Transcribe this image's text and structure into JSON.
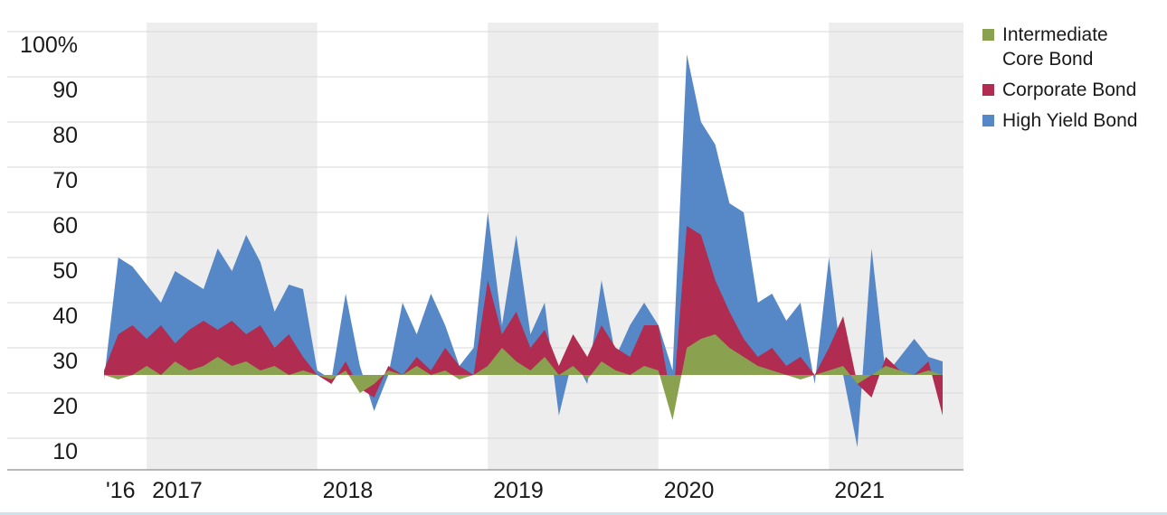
{
  "colors": {
    "band": "#ededed",
    "grid": "#d9d9d9",
    "axis": "#a0a0a0",
    "text": "#1a1a1a",
    "green": "#8aa24f",
    "red": "#b02c50",
    "blue": "#5688c7"
  },
  "chart_data": {
    "type": "area",
    "title": "",
    "frequency": "monthly",
    "x_start": "Oct 2016",
    "x_end": "Sep 2021",
    "baseline_value": 24,
    "ylim": [
      10,
      100
    ],
    "grid": true,
    "legend_position": "top-right",
    "background_year_bands": [
      "2017",
      "2019",
      "2021"
    ],
    "yticks": [
      {
        "value": 100,
        "label": "100%"
      },
      {
        "value": 90,
        "label": "90"
      },
      {
        "value": 80,
        "label": "80"
      },
      {
        "value": 70,
        "label": "70"
      },
      {
        "value": 60,
        "label": "60"
      },
      {
        "value": 50,
        "label": "50"
      },
      {
        "value": 40,
        "label": "40"
      },
      {
        "value": 30,
        "label": "30"
      },
      {
        "value": 20,
        "label": "20"
      },
      {
        "value": 10,
        "label": "10"
      }
    ],
    "xticks": [
      {
        "label": "'16",
        "month_index": 0
      },
      {
        "label": "2017",
        "month_index": 3
      },
      {
        "label": "2018",
        "month_index": 15
      },
      {
        "label": "2019",
        "month_index": 27
      },
      {
        "label": "2020",
        "month_index": 39
      },
      {
        "label": "2021",
        "month_index": 51
      }
    ],
    "series": [
      {
        "name": "Intermediate Core Bond",
        "color": "#8aa24f",
        "values": [
          24,
          23,
          24,
          26,
          24,
          27,
          25,
          26,
          28,
          26,
          27,
          25,
          26,
          24,
          25,
          24,
          23,
          25,
          20,
          22,
          25,
          24,
          26,
          24,
          25,
          23,
          24,
          26,
          30,
          27,
          25,
          28,
          24,
          26,
          23,
          27,
          25,
          24,
          26,
          25,
          14,
          30,
          32,
          33,
          30,
          28,
          26,
          25,
          24,
          23,
          24,
          25,
          26,
          22,
          24,
          26,
          25,
          24,
          25,
          24
        ]
      },
      {
        "name": "Corporate Bond",
        "color": "#b02c50",
        "values": [
          25,
          33,
          35,
          32,
          35,
          31,
          34,
          36,
          34,
          36,
          33,
          35,
          30,
          33,
          28,
          24,
          22,
          27,
          21,
          19,
          26,
          24,
          28,
          25,
          30,
          26,
          24,
          45,
          33,
          38,
          30,
          34,
          26,
          33,
          28,
          35,
          30,
          28,
          35,
          35,
          17,
          57,
          55,
          45,
          38,
          32,
          28,
          30,
          26,
          28,
          24,
          30,
          37,
          22,
          19,
          28,
          25,
          24,
          27,
          15
        ]
      },
      {
        "name": "High Yield Bond",
        "color": "#5688c7",
        "values": [
          23,
          50,
          48,
          44,
          40,
          47,
          45,
          43,
          52,
          47,
          55,
          49,
          38,
          44,
          43,
          25,
          23,
          42,
          26,
          16,
          24,
          40,
          33,
          42,
          35,
          26,
          30,
          60,
          35,
          55,
          33,
          40,
          15,
          28,
          22,
          45,
          28,
          35,
          40,
          35,
          25,
          95,
          80,
          75,
          62,
          60,
          40,
          42,
          36,
          40,
          22,
          50,
          24,
          8,
          52,
          24,
          28,
          32,
          28,
          27
        ]
      }
    ]
  }
}
